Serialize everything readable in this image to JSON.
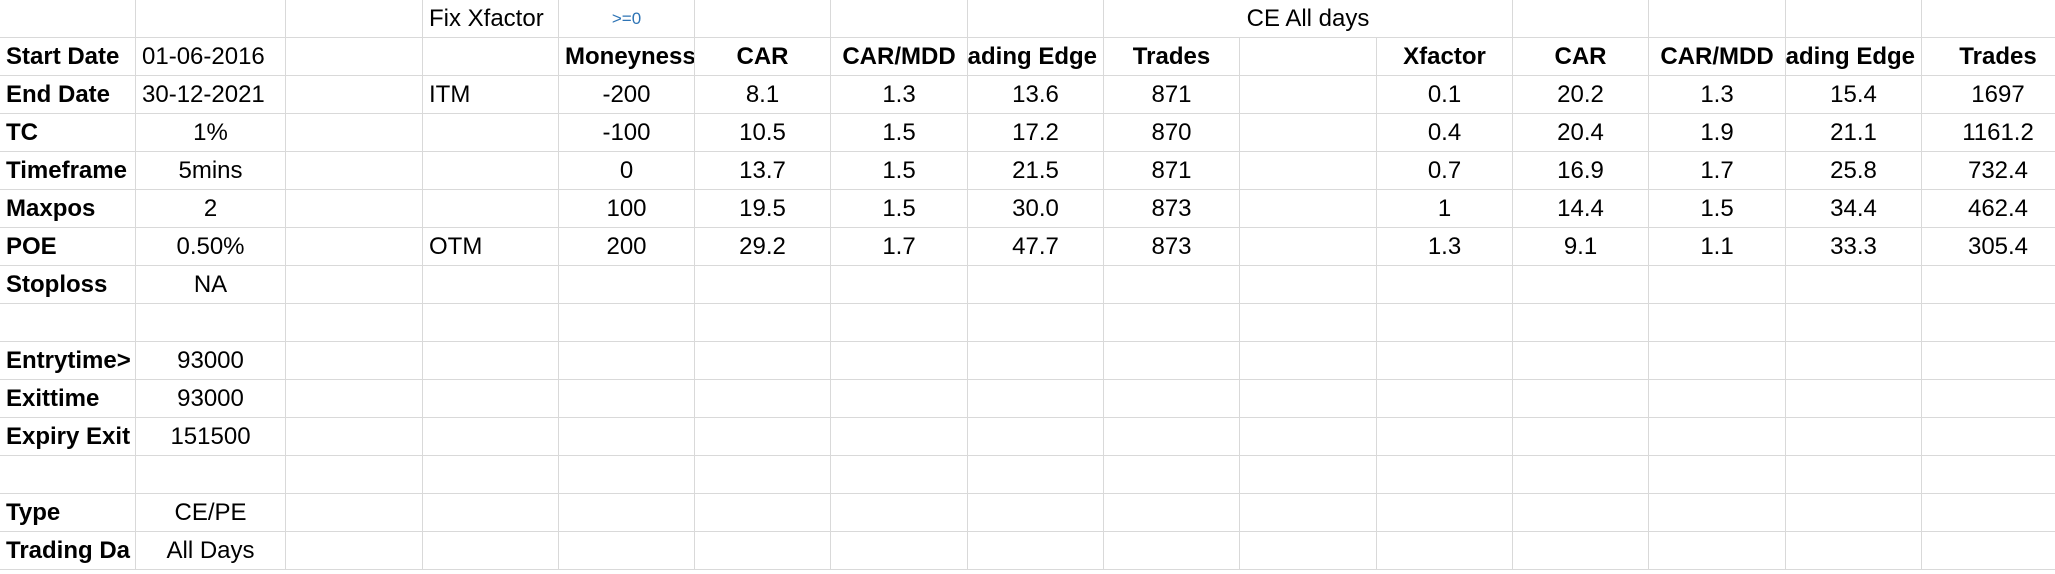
{
  "sheet": {
    "params": [
      {
        "label": "Start Date",
        "value": "01-06-2016",
        "value_align": "left"
      },
      {
        "label": "End Date",
        "value": "30-12-2021",
        "value_align": "left"
      },
      {
        "label": "TC",
        "value": "1%",
        "value_align": "center"
      },
      {
        "label": "Timeframe",
        "value": "5mins",
        "value_align": "center"
      },
      {
        "label": "Maxpos",
        "value": "2",
        "value_align": "center"
      },
      {
        "label": "POE",
        "value": "0.50%",
        "value_align": "center"
      },
      {
        "label": "Stoploss",
        "value": "NA",
        "value_align": "center"
      },
      {
        "label": "",
        "value": "",
        "value_align": "center"
      },
      {
        "label": "Entrytime>",
        "value": "93000",
        "value_align": "center"
      },
      {
        "label": "Exittime",
        "value": "93000",
        "value_align": "center"
      },
      {
        "label": "Expiry Exit",
        "value": "151500",
        "value_align": "center"
      },
      {
        "label": "",
        "value": "",
        "value_align": "center"
      },
      {
        "label": "Type",
        "value": "CE/PE",
        "value_align": "center"
      },
      {
        "label": "Trading Da",
        "value": "All Days",
        "value_align": "center"
      }
    ],
    "fix_section": {
      "title": "Fix Xfactor",
      "condition": ">=0",
      "headers": [
        "Moneyness",
        "CAR",
        "CAR/MDD",
        "Trading Edge",
        "Trades"
      ],
      "rows": [
        {
          "label": "ITM",
          "moneyness": "-200",
          "car": "8.1",
          "car_mdd": "1.3",
          "edge": "13.6",
          "trades": "871"
        },
        {
          "label": "",
          "moneyness": "-100",
          "car": "10.5",
          "car_mdd": "1.5",
          "edge": "17.2",
          "trades": "870"
        },
        {
          "label": "",
          "moneyness": "0",
          "car": "13.7",
          "car_mdd": "1.5",
          "edge": "21.5",
          "trades": "871"
        },
        {
          "label": "",
          "moneyness": "100",
          "car": "19.5",
          "car_mdd": "1.5",
          "edge": "30.0",
          "trades": "873"
        },
        {
          "label": "OTM",
          "moneyness": "200",
          "car": "29.2",
          "car_mdd": "1.7",
          "edge": "47.7",
          "trades": "873"
        }
      ]
    },
    "ce_section": {
      "title": "CE All days",
      "headers": [
        "Xfactor",
        "CAR",
        "CAR/MDD",
        "Trading Edge",
        "Trades"
      ],
      "rows": [
        {
          "xfactor": "0.1",
          "car": "20.2",
          "car_mdd": "1.3",
          "edge": "15.4",
          "trades": "1697"
        },
        {
          "xfactor": "0.4",
          "car": "20.4",
          "car_mdd": "1.9",
          "edge": "21.1",
          "trades": "1161.2"
        },
        {
          "xfactor": "0.7",
          "car": "16.9",
          "car_mdd": "1.7",
          "edge": "25.8",
          "trades": "732.4"
        },
        {
          "xfactor": "1",
          "car": "14.4",
          "car_mdd": "1.5",
          "edge": "34.4",
          "trades": "462.4"
        },
        {
          "xfactor": "1.3",
          "car": "9.1",
          "car_mdd": "1.1",
          "edge": "33.3",
          "trades": "305.4"
        }
      ]
    }
  }
}
